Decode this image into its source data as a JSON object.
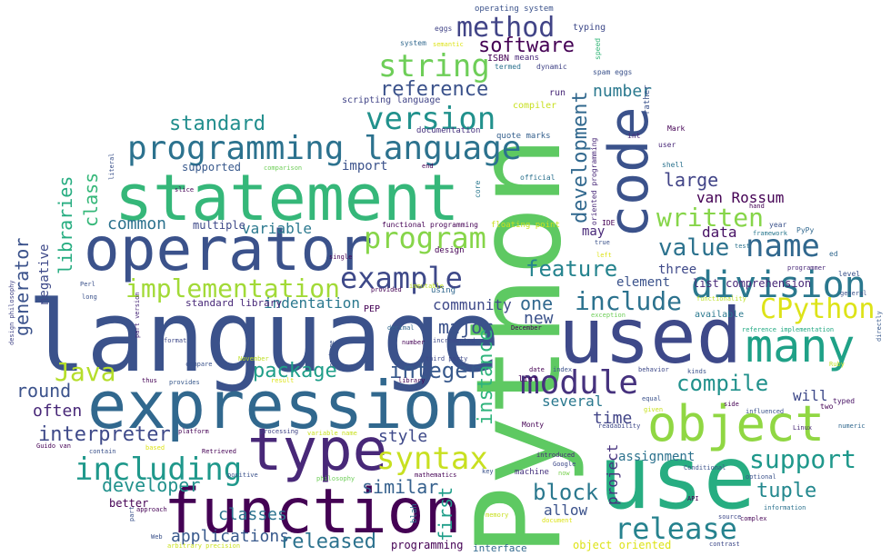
{
  "words": [
    {
      "text": "Python",
      "color": "#5ec962"
    },
    {
      "text": "language",
      "color": "#3b528b"
    },
    {
      "text": "statement",
      "color": "#35b779"
    },
    {
      "text": "expression",
      "color": "#31688e"
    },
    {
      "text": "code",
      "color": "#3b528b"
    },
    {
      "text": "use",
      "color": "#27ad81"
    },
    {
      "text": "used",
      "color": "#3e4989"
    },
    {
      "text": "operator",
      "color": "#3b528b"
    },
    {
      "text": "type",
      "color": "#482878"
    },
    {
      "text": "function",
      "color": "#440154"
    },
    {
      "text": "object",
      "color": "#90d743"
    },
    {
      "text": "many",
      "color": "#1fa187"
    },
    {
      "text": "programming language",
      "color": "#2c728e"
    },
    {
      "text": "division",
      "color": "#2a788e"
    },
    {
      "text": "name",
      "color": "#31688e"
    },
    {
      "text": "release",
      "color": "#26828e"
    },
    {
      "text": "module",
      "color": "#46327e"
    },
    {
      "text": "including",
      "color": "#1f988b"
    },
    {
      "text": "syntax",
      "color": "#c8e020"
    },
    {
      "text": "implementation",
      "color": "#a2da37"
    },
    {
      "text": "program",
      "color": "#86d549"
    },
    {
      "text": "example",
      "color": "#3e4989"
    },
    {
      "text": "string",
      "color": "#6ece58"
    },
    {
      "text": "version",
      "color": "#21918c"
    },
    {
      "text": "method",
      "color": "#414487"
    },
    {
      "text": "Java",
      "color": "#b5de2b"
    },
    {
      "text": "CPython",
      "color": "#dde318"
    },
    {
      "text": "written",
      "color": "#86d549"
    },
    {
      "text": "value",
      "color": "#2c728e"
    },
    {
      "text": "support",
      "color": "#1f988b"
    },
    {
      "text": "compile",
      "color": "#21918c"
    },
    {
      "text": "feature",
      "color": "#25838e"
    },
    {
      "text": "include",
      "color": "#2c728e"
    },
    {
      "text": "integer",
      "color": "#38598c"
    },
    {
      "text": "package",
      "color": "#1f9e89"
    },
    {
      "text": "reference",
      "color": "#3b528b"
    },
    {
      "text": "software",
      "color": "#440154"
    },
    {
      "text": "standard",
      "color": "#218e8d"
    },
    {
      "text": "block",
      "color": "#2a788e"
    },
    {
      "text": "tuple",
      "color": "#23888e"
    },
    {
      "text": "development",
      "color": "#31688e"
    },
    {
      "text": "instance",
      "color": "#2fb47c"
    },
    {
      "text": "interpreter",
      "color": "#3e4989"
    },
    {
      "text": "developer",
      "color": "#21918c"
    },
    {
      "text": "applications",
      "color": "#38598c"
    },
    {
      "text": "released",
      "color": "#2c728e"
    },
    {
      "text": "similar",
      "color": "#35608d"
    },
    {
      "text": "classes",
      "color": "#2c728e"
    },
    {
      "text": "style",
      "color": "#3e4989"
    },
    {
      "text": "generator",
      "color": "#3b528b"
    },
    {
      "text": "libraries",
      "color": "#27ad81"
    },
    {
      "text": "class",
      "color": "#35b779"
    },
    {
      "text": "common",
      "color": "#2c728e"
    },
    {
      "text": "variable",
      "color": "#2a788e"
    },
    {
      "text": "indentation",
      "color": "#2a788e"
    },
    {
      "text": "community",
      "color": "#3e4989"
    },
    {
      "text": "one",
      "color": "#31688e"
    },
    {
      "text": "major",
      "color": "#3b528b"
    },
    {
      "text": "new",
      "color": "#3b528b"
    },
    {
      "text": "large",
      "color": "#414487"
    },
    {
      "text": "van Rossum",
      "color": "#440154"
    },
    {
      "text": "data",
      "color": "#471164"
    },
    {
      "text": "number",
      "color": "#2a788e"
    },
    {
      "text": "round",
      "color": "#3b528b"
    },
    {
      "text": "often",
      "color": "#482878"
    },
    {
      "text": "time",
      "color": "#414487"
    },
    {
      "text": "several",
      "color": "#2a788e"
    },
    {
      "text": "allow",
      "color": "#3b528b"
    },
    {
      "text": "will",
      "color": "#3e4989"
    },
    {
      "text": "three",
      "color": "#3e4989"
    },
    {
      "text": "element",
      "color": "#3b528b"
    },
    {
      "text": "first",
      "color": "#1f9e89"
    },
    {
      "text": "project",
      "color": "#46327e"
    },
    {
      "text": "assignment",
      "color": "#2c728e"
    },
    {
      "text": "may",
      "color": "#482878"
    },
    {
      "text": "import",
      "color": "#3b528b"
    },
    {
      "text": "negative",
      "color": "#3e4989"
    },
    {
      "text": "list comprehension",
      "color": "#482878"
    },
    {
      "text": "object oriented",
      "color": "#dde318"
    },
    {
      "text": "programming",
      "color": "#440154"
    },
    {
      "text": "interface",
      "color": "#31688e"
    },
    {
      "text": "better",
      "color": "#440154"
    },
    {
      "text": "multiple",
      "color": "#3e4989"
    },
    {
      "text": "supported",
      "color": "#38598c"
    },
    {
      "text": "run",
      "color": "#482878"
    },
    {
      "text": "compiler",
      "color": "#c8e020"
    },
    {
      "text": "ISBN",
      "color": "#440154"
    },
    {
      "text": "means",
      "color": "#482878"
    },
    {
      "text": "typing",
      "color": "#3e4989"
    },
    {
      "text": "PEP",
      "color": "#440154"
    },
    {
      "text": "documentation",
      "color": "#46327e"
    },
    {
      "text": "scripting language",
      "color": "#414487"
    },
    {
      "text": "quote marks",
      "color": "#35608d"
    },
    {
      "text": "standard library",
      "color": "#482878"
    },
    {
      "text": "design",
      "color": "#440154"
    },
    {
      "text": "available",
      "color": "#2a788e"
    },
    {
      "text": "functional programming",
      "color": "#440154"
    },
    {
      "text": "floating point",
      "color": "#cae11f"
    },
    {
      "text": "operating system",
      "color": "#3b528b"
    },
    {
      "text": "eggs",
      "color": "#414487"
    },
    {
      "text": "system",
      "color": "#31688e"
    },
    {
      "text": "semantic",
      "color": "#dde318"
    },
    {
      "text": "termed",
      "color": "#2c728e"
    },
    {
      "text": "dynamic",
      "color": "#414487"
    },
    {
      "text": "spam eggs",
      "color": "#3b528b"
    },
    {
      "text": "speed",
      "color": "#35b779"
    },
    {
      "text": "rather",
      "color": "#3b528b"
    },
    {
      "text": "Mark",
      "color": "#440154"
    },
    {
      "text": "user",
      "color": "#482878"
    },
    {
      "text": "int",
      "color": "#482878"
    },
    {
      "text": "shell",
      "color": "#2c728e"
    },
    {
      "text": "oriented programming",
      "color": "#482878"
    },
    {
      "text": "IDE",
      "color": "#440154"
    },
    {
      "text": "official",
      "color": "#2c728e"
    },
    {
      "text": "hand",
      "color": "#440154"
    },
    {
      "text": "year",
      "color": "#3b528b"
    },
    {
      "text": "framework",
      "color": "#2a788e"
    },
    {
      "text": "PyPy",
      "color": "#31688e"
    },
    {
      "text": "test",
      "color": "#2c728e"
    },
    {
      "text": "programmer",
      "color": "#482878"
    },
    {
      "text": "ed",
      "color": "#31688e"
    },
    {
      "text": "level",
      "color": "#3b528b"
    },
    {
      "text": "general",
      "color": "#3b528b"
    },
    {
      "text": "functionality",
      "color": "#bddf26"
    },
    {
      "text": "reference implementation",
      "color": "#23a983"
    },
    {
      "text": "directly",
      "color": "#38598c"
    },
    {
      "text": "true",
      "color": "#3b528b"
    },
    {
      "text": "left",
      "color": "#dde318"
    },
    {
      "text": "exception",
      "color": "#6ece58"
    },
    {
      "text": "December",
      "color": "#440154"
    },
    {
      "text": "index",
      "color": "#3b528b"
    },
    {
      "text": "date",
      "color": "#440154"
    },
    {
      "text": "behavior",
      "color": "#3e4989"
    },
    {
      "text": "kinds",
      "color": "#3b528b"
    },
    {
      "text": "Ruby",
      "color": "#bddf26"
    },
    {
      "text": "equal",
      "color": "#3b528b"
    },
    {
      "text": "given",
      "color": "#c8e020"
    },
    {
      "text": "readability",
      "color": "#3e4989"
    },
    {
      "text": "side",
      "color": "#440154"
    },
    {
      "text": "influenced",
      "color": "#3b528b"
    },
    {
      "text": "typed",
      "color": "#471164"
    },
    {
      "text": "two",
      "color": "#440154"
    },
    {
      "text": "numeric",
      "color": "#31688e"
    },
    {
      "text": "Linux",
      "color": "#482878"
    },
    {
      "text": "Conditional",
      "color": "#3b528b"
    },
    {
      "text": "optional",
      "color": "#3b528b"
    },
    {
      "text": "API",
      "color": "#440154"
    },
    {
      "text": "source",
      "color": "#3e4989"
    },
    {
      "text": "complex",
      "color": "#440154"
    },
    {
      "text": "information",
      "color": "#2c728e"
    },
    {
      "text": "contrast",
      "color": "#3e4989"
    },
    {
      "text": "introduced",
      "color": "#482878"
    },
    {
      "text": "Google",
      "color": "#3e4989"
    },
    {
      "text": "now",
      "color": "#7ad151"
    },
    {
      "text": "machine",
      "color": "#46327e"
    },
    {
      "text": "key",
      "color": "#3b528b"
    },
    {
      "text": "Monty",
      "color": "#440154"
    },
    {
      "text": "memory",
      "color": "#c8e020"
    },
    {
      "text": "document",
      "color": "#dde318"
    },
    {
      "text": "list",
      "color": "#440154"
    },
    {
      "text": "core",
      "color": "#2a788e"
    },
    {
      "text": "using",
      "color": "#31688e"
    },
    {
      "text": "library",
      "color": "#440154"
    },
    {
      "text": "incremented",
      "color": "#3e4989"
    },
    {
      "text": "number",
      "color": "#440154"
    },
    {
      "text": "decimal",
      "color": "#31688e"
    },
    {
      "text": "mathematics",
      "color": "#440154"
    },
    {
      "text": "third party",
      "color": "#3e4989"
    },
    {
      "text": "blah",
      "color": "#2c728e"
    },
    {
      "text": "immutable",
      "color": "#bddf26"
    },
    {
      "text": "provided",
      "color": "#440154"
    },
    {
      "text": "single",
      "color": "#440154"
    },
    {
      "text": "garbage",
      "color": "#3b528b"
    },
    {
      "text": "variable name",
      "color": "#c8e020"
    },
    {
      "text": "processing",
      "color": "#414487"
    },
    {
      "text": "philosophy",
      "color": "#6ece58"
    },
    {
      "text": "result",
      "color": "#dde318"
    },
    {
      "text": "provides",
      "color": "#38598c"
    },
    {
      "text": "thus",
      "color": "#440154"
    },
    {
      "text": "November",
      "color": "#bddf26"
    },
    {
      "text": "positive",
      "color": "#3b528b"
    },
    {
      "text": "Retrieved",
      "color": "#440154"
    },
    {
      "text": "platform",
      "color": "#440154"
    },
    {
      "text": "Guido van",
      "color": "#440154"
    },
    {
      "text": "contain",
      "color": "#3b528b"
    },
    {
      "text": "based",
      "color": "#dde318"
    },
    {
      "text": "approach",
      "color": "#440154"
    },
    {
      "text": "part",
      "color": "#3b528b"
    },
    {
      "text": "Web",
      "color": "#3b528b"
    },
    {
      "text": "arbitrary precision",
      "color": "#cae11f"
    },
    {
      "text": "slice",
      "color": "#440154"
    },
    {
      "text": "comparison",
      "color": "#6ece58"
    },
    {
      "text": "end",
      "color": "#440154"
    },
    {
      "text": "format",
      "color": "#3e4989"
    },
    {
      "text": "compare",
      "color": "#3b528b"
    },
    {
      "text": "Perl",
      "color": "#3b528b"
    },
    {
      "text": "long",
      "color": "#3b528b"
    },
    {
      "text": "literal",
      "color": "#3b528b"
    },
    {
      "text": "part version",
      "color": "#482878"
    },
    {
      "text": "design philosophy",
      "color": "#414487"
    }
  ]
}
